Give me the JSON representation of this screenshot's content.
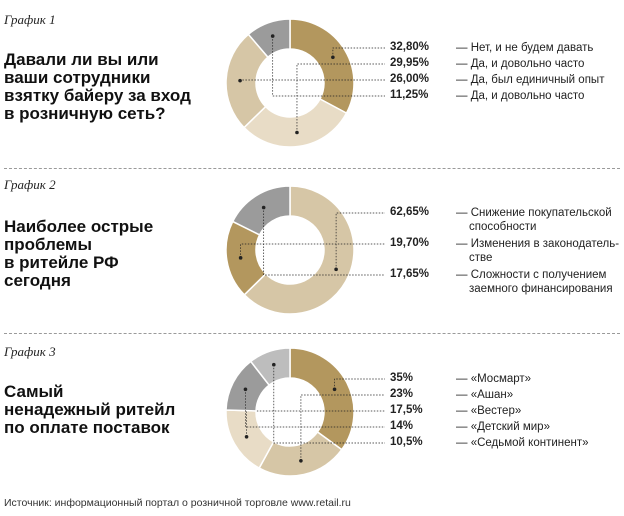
{
  "colors": {
    "dark_gold": "#b3975e",
    "light_tan": "#d6c6a6",
    "pale_cream": "#e8dcc6",
    "gray": "#9b9b9b",
    "light_gray": "#bdbdbd",
    "separator": "#9a9a9a"
  },
  "chart_data": [
    {
      "type": "pie",
      "label": "График 1",
      "title_lines": [
        "Давали ли вы или",
        "ваши сотрудники",
        "взятку байеру за вход",
        "в розничную сеть?"
      ],
      "slices": [
        {
          "value": 32.8,
          "pct": "32,80%",
          "lines": [
            "— Нет, и не будем давать"
          ],
          "color": "#b3975e"
        },
        {
          "value": 29.95,
          "pct": "29,95%",
          "lines": [
            "— Да, и довольно часто"
          ],
          "color": "#e8dcc6"
        },
        {
          "value": 26.0,
          "pct": "26,00%",
          "lines": [
            "— Да, был единичный опыт"
          ],
          "color": "#d6c6a6"
        },
        {
          "value": 11.25,
          "pct": "11,25%",
          "lines": [
            "— Да, и довольно часто"
          ],
          "color": "#9b9b9b"
        }
      ]
    },
    {
      "type": "pie",
      "label": "График 2",
      "title_lines": [
        "Наиболее острые",
        "проблемы",
        "в ритейле РФ",
        "сегодня"
      ],
      "slices": [
        {
          "value": 62.65,
          "pct": "62,65%",
          "lines": [
            "— Снижение покупательской",
            "способности"
          ],
          "color": "#d6c6a6"
        },
        {
          "value": 19.7,
          "pct": "19,70%",
          "lines": [
            "— Изменения в законодатель-",
            "стве"
          ],
          "color": "#b3975e"
        },
        {
          "value": 17.65,
          "pct": "17,65%",
          "lines": [
            "— Сложности с получением",
            "заемного финансирования"
          ],
          "color": "#9b9b9b"
        }
      ]
    },
    {
      "type": "pie",
      "label": "График 3",
      "title_lines": [
        "Самый",
        "ненадежный ритейл",
        "по оплате поставок"
      ],
      "slices": [
        {
          "value": 35,
          "pct": "35%",
          "lines": [
            "— «Мосмарт»"
          ],
          "color": "#b3975e"
        },
        {
          "value": 23,
          "pct": "23%",
          "lines": [
            "— «Ашан»"
          ],
          "color": "#d6c6a6"
        },
        {
          "value": 17.5,
          "pct": "17,5%",
          "lines": [
            "— «Вестер»"
          ],
          "color": "#e8dcc6"
        },
        {
          "value": 14,
          "pct": "14%",
          "lines": [
            "— «Детский мир»"
          ],
          "color": "#9b9b9b"
        },
        {
          "value": 10.5,
          "pct": "10,5%",
          "lines": [
            "— «Седьмой континент»"
          ],
          "color": "#bdbdbd"
        }
      ]
    }
  ],
  "source": "Источник: информационный портал о розничной торговле www.retail.ru"
}
